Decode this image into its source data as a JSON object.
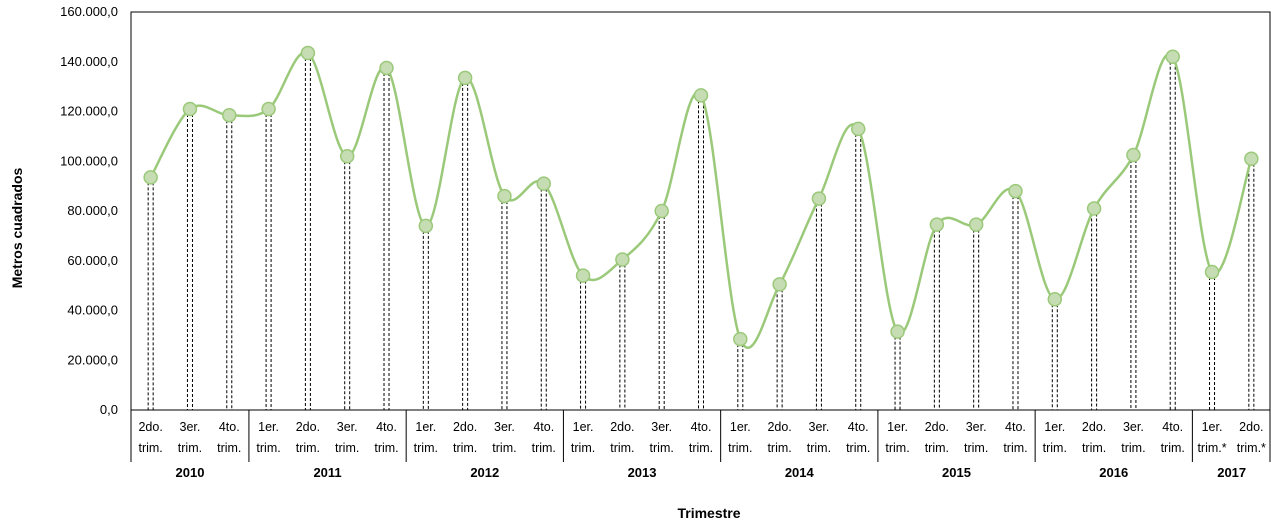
{
  "chart_data": {
    "type": "line",
    "title": "",
    "xlabel": "Trimestre",
    "ylabel": "Metros cuadrados",
    "ylim": [
      0,
      160000
    ],
    "yticks": [
      "0,0",
      "20.000,0",
      "40.000,0",
      "60.000,0",
      "80.000,0",
      "100.000,0",
      "120.000,0",
      "140.000,0",
      "160.000,0"
    ],
    "smooth": true,
    "drop_lines": true,
    "grid": false,
    "legend": "none",
    "line_color": "#9bc97a",
    "marker_fill": "#c6dcb2",
    "marker_stroke": "#9bc97a",
    "categories": [
      {
        "line1": "2do.",
        "line2": "trim."
      },
      {
        "line1": "3er.",
        "line2": "trim."
      },
      {
        "line1": "4to.",
        "line2": "trim."
      },
      {
        "line1": "1er.",
        "line2": "trim."
      },
      {
        "line1": "2do.",
        "line2": "trim."
      },
      {
        "line1": "3er.",
        "line2": "trim."
      },
      {
        "line1": "4to.",
        "line2": "trim."
      },
      {
        "line1": "1er.",
        "line2": "trim."
      },
      {
        "line1": "2do.",
        "line2": "trim."
      },
      {
        "line1": "3er.",
        "line2": "trim."
      },
      {
        "line1": "4to.",
        "line2": "trim."
      },
      {
        "line1": "1er.",
        "line2": "trim."
      },
      {
        "line1": "2do.",
        "line2": "trim."
      },
      {
        "line1": "3er.",
        "line2": "trim."
      },
      {
        "line1": "4to.",
        "line2": "trim."
      },
      {
        "line1": "1er.",
        "line2": "trim."
      },
      {
        "line1": "2do.",
        "line2": "trim."
      },
      {
        "line1": "3er.",
        "line2": "trim."
      },
      {
        "line1": "4to.",
        "line2": "trim."
      },
      {
        "line1": "1er.",
        "line2": "trim."
      },
      {
        "line1": "2do.",
        "line2": "trim."
      },
      {
        "line1": "3er.",
        "line2": "trim."
      },
      {
        "line1": "4to.",
        "line2": "trim."
      },
      {
        "line1": "1er.",
        "line2": "trim."
      },
      {
        "line1": "2do.",
        "line2": "trim."
      },
      {
        "line1": "3er.",
        "line2": "trim."
      },
      {
        "line1": "4to.",
        "line2": "trim."
      },
      {
        "line1": "1er.",
        "line2": "trim.*"
      },
      {
        "line1": "2do.",
        "line2": "trim.*"
      }
    ],
    "years": [
      {
        "label": "2010",
        "count": 3
      },
      {
        "label": "2011",
        "count": 4
      },
      {
        "label": "2012",
        "count": 4
      },
      {
        "label": "2013",
        "count": 4
      },
      {
        "label": "2014",
        "count": 4
      },
      {
        "label": "2015",
        "count": 4
      },
      {
        "label": "2016",
        "count": 4
      },
      {
        "label": "2017",
        "count": 2
      }
    ],
    "series": [
      {
        "values": [
          93500,
          121000,
          118500,
          121000,
          143500,
          102000,
          137500,
          74000,
          133500,
          86000,
          91000,
          54000,
          60500,
          80000,
          126500,
          28500,
          50500,
          85000,
          113000,
          31500,
          74500,
          74500,
          88000,
          44500,
          81000,
          102500,
          142000,
          55500,
          101000
        ]
      }
    ]
  }
}
